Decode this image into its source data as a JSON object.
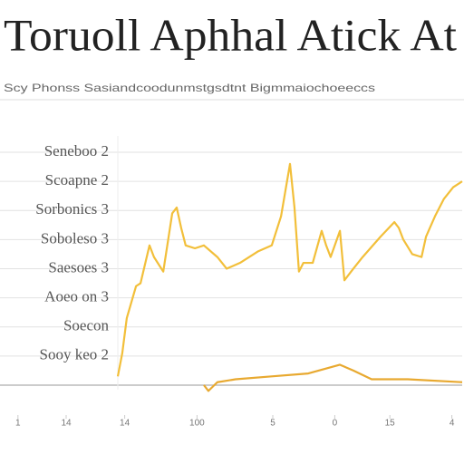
{
  "chart_data": {
    "type": "line",
    "title": "Toruoll Aphhal Atick At",
    "subtitle": "Scy Phonss Sasiandcoodunmstgsdtnt Bigmmaiochoeeccs",
    "xlim": [
      -30,
      100
    ],
    "xticks": [
      {
        "value": -29,
        "label": "1"
      },
      {
        "value": -15,
        "label": "14"
      },
      {
        "value": 2,
        "label": "14"
      },
      {
        "value": 23,
        "label": "100"
      },
      {
        "value": 45,
        "label": "5"
      },
      {
        "value": 63,
        "label": "0"
      },
      {
        "value": 79,
        "label": "15"
      },
      {
        "value": 97,
        "label": "4"
      }
    ],
    "ylim": [
      -0.5,
      8
    ],
    "yticks": [
      {
        "value": 8,
        "label": "Seneboo 2"
      },
      {
        "value": 7,
        "label": "Scoapne 2"
      },
      {
        "value": 6,
        "label": "Sorbonics 3"
      },
      {
        "value": 5,
        "label": "Soboleso 3"
      },
      {
        "value": 4,
        "label": "Saesoes 3"
      },
      {
        "value": 3,
        "label": "Aoeo on 3"
      },
      {
        "value": 2,
        "label": "Soecon"
      },
      {
        "value": 1,
        "label": "Sooy keo 2"
      },
      {
        "value": 0,
        "label": ""
      }
    ],
    "grid": true,
    "series": [
      {
        "color": "#f2bf3a",
        "x": [
          0,
          1.3,
          2.6,
          5.3,
          6.6,
          9.2,
          10.5,
          13.2,
          15.8,
          17.1,
          18.4,
          19.7,
          22.4,
          25,
          28.9,
          31.6,
          35.5,
          40.8,
          44.7,
          47.4,
          50,
          51.3,
          52.6,
          53.9,
          56.6,
          59.2,
          60.5,
          61.8,
          64.5,
          65.8,
          68.4,
          71.1,
          76.3,
          80.3,
          81.6,
          82.9,
          85.5,
          88.2,
          89.5,
          92.1,
          94.7,
          97.4,
          100
        ],
        "values": [
          0.3,
          1.1,
          2.3,
          3.4,
          3.5,
          4.8,
          4.4,
          3.9,
          5.9,
          6.1,
          5.4,
          4.8,
          4.7,
          4.8,
          4.4,
          4.0,
          4.2,
          4.6,
          4.8,
          5.8,
          7.6,
          6.1,
          3.9,
          4.2,
          4.2,
          5.3,
          4.8,
          4.4,
          5.3,
          3.6,
          4.0,
          4.4,
          5.1,
          5.6,
          5.4,
          5.0,
          4.5,
          4.4,
          5.1,
          5.8,
          6.4,
          6.8,
          7.0
        ]
      },
      {
        "color": "#e8a930",
        "x": [
          25,
          26.3,
          28.9,
          34.2,
          44.7,
          55.3,
          64.5,
          68.4,
          73.7,
          84.2,
          100
        ],
        "values": [
          0.0,
          -0.2,
          0.1,
          0.2,
          0.3,
          0.4,
          0.7,
          0.5,
          0.2,
          0.2,
          0.1
        ]
      }
    ]
  }
}
